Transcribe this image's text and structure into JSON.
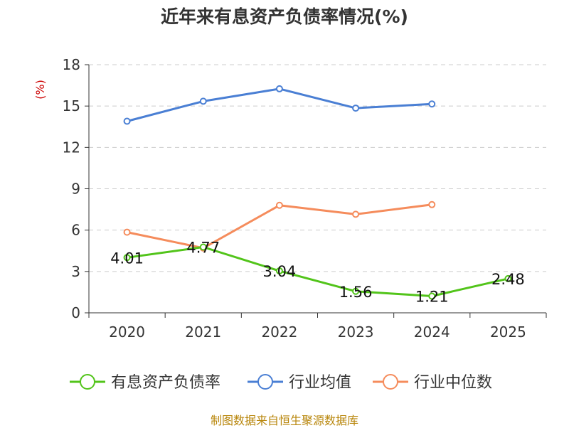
{
  "chart_data": {
    "type": "line",
    "title": "近年来有息资产负债率情况(%)",
    "ylabel": "(%)",
    "xlabel": "",
    "categories": [
      "2020",
      "2021",
      "2022",
      "2023",
      "2024",
      "2025"
    ],
    "ylim": [
      0,
      18
    ],
    "yticks": [
      0,
      3,
      6,
      9,
      12,
      15,
      18
    ],
    "grid": true,
    "legend_position": "bottom",
    "series": [
      {
        "name": "有息资产负债率",
        "color": "#52c41a",
        "values": [
          4.01,
          4.77,
          3.04,
          1.56,
          1.21,
          2.48
        ],
        "labels": [
          "4.01",
          "4.77",
          "3.04",
          "1.56",
          "1.21",
          "2.48"
        ]
      },
      {
        "name": "行业均值",
        "color": "#4a7fd4",
        "values": [
          13.9,
          15.35,
          16.25,
          14.85,
          15.15,
          null
        ]
      },
      {
        "name": "行业中位数",
        "color": "#f58c5c",
        "values": [
          5.85,
          4.7,
          7.8,
          7.15,
          7.85,
          null
        ]
      }
    ]
  },
  "source": "制图数据来自恒生聚源数据库"
}
